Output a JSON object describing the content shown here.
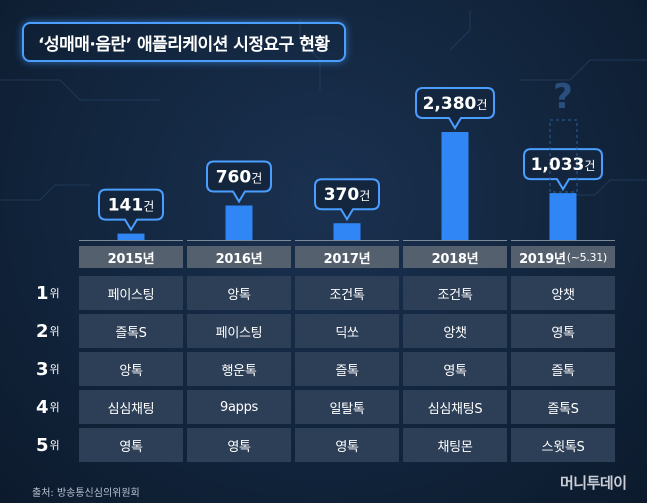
{
  "title": "‘성매매·음란’ 애플리케이션 시정요구 현황",
  "source": "출처: 방송통신심의위원회",
  "logo": "머니투데이",
  "years": [
    {
      "year": "2015년",
      "sub": ""
    },
    {
      "year": "2016년",
      "sub": ""
    },
    {
      "year": "2017년",
      "sub": ""
    },
    {
      "year": "2018년",
      "sub": ""
    },
    {
      "year": "2019년",
      "sub": "(~5.31)"
    }
  ],
  "ranks": [
    {
      "n": "1",
      "suffix": "위"
    },
    {
      "n": "2",
      "suffix": "위"
    },
    {
      "n": "3",
      "suffix": "위"
    },
    {
      "n": "4",
      "suffix": "위"
    },
    {
      "n": "5",
      "suffix": "위"
    }
  ],
  "table": [
    [
      "페이스팅",
      "앙톡",
      "조건톡",
      "조건톡",
      "앙챗"
    ],
    [
      "즐톡S",
      "페이스팅",
      "딕쏘",
      "앙챗",
      "영톡"
    ],
    [
      "앙톡",
      "행운톡",
      "즐톡",
      "영톡",
      "즐톡"
    ],
    [
      "심심채팅",
      "9apps",
      "일탈톡",
      "심심채팅S",
      "즐톡S"
    ],
    [
      "영톡",
      "영톡",
      "영톡",
      "채팅몬",
      "스윗톡S"
    ]
  ],
  "question_mark": "?",
  "colors": {
    "bar": "#2f86f4",
    "accent": "#4a9eff",
    "header": "#55606e",
    "cell": "#2d3f57"
  },
  "chart_data": {
    "type": "bar",
    "categories": [
      "2015년",
      "2016년",
      "2017년",
      "2018년",
      "2019년(~5.31)"
    ],
    "values": [
      141,
      760,
      370,
      2380,
      1033
    ],
    "labels": [
      "141건",
      "760건",
      "370건",
      "2,380건",
      "1,033건"
    ],
    "ylim": [
      0,
      2380
    ]
  }
}
